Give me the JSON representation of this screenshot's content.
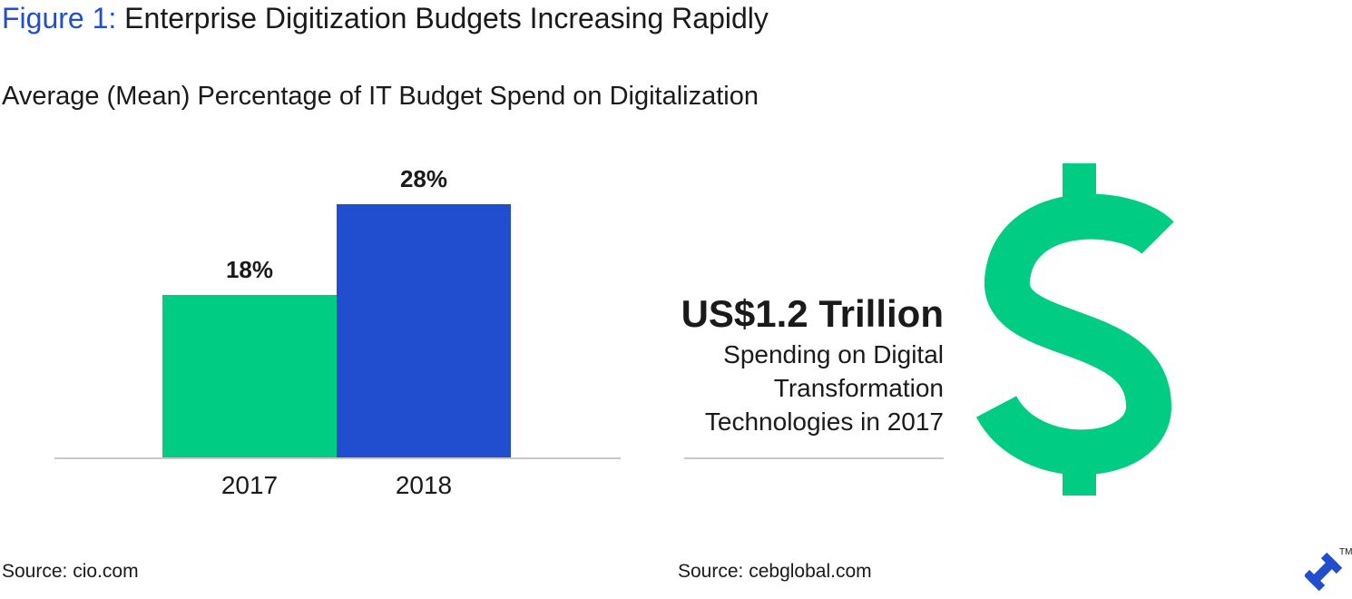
{
  "header": {
    "figure_label": "Figure 1:",
    "title": "Enterprise Digitization Budgets Increasing Rapidly",
    "subtitle": "Average (Mean) Percentage of IT Budget Spend on Digitalization"
  },
  "chart_data": {
    "type": "bar",
    "title": "Average (Mean) Percentage of IT Budget Spend on Digitalization",
    "categories": [
      "2017",
      "2018"
    ],
    "values": [
      18,
      28
    ],
    "value_labels": [
      "18%",
      "28%"
    ],
    "bar_colors": [
      "#00cc83",
      "#204ecf"
    ],
    "xlabel": "",
    "ylabel": "",
    "ylim": [
      0,
      30
    ],
    "grid": false,
    "legend": "none"
  },
  "stat": {
    "value": "US$1.2 Trillion",
    "description": "Spending on Digital Transformation Technologies in 2017",
    "icon": "dollar-icon",
    "icon_color": "#00cc83"
  },
  "sources": {
    "left": "Source: cio.com",
    "right": "Source: cebglobal.com"
  },
  "logo": {
    "icon": "toptal-logo",
    "trademark": "TM",
    "color": "#204ecf"
  },
  "colors": {
    "accent_blue": "#204ecf",
    "accent_green": "#00cc83",
    "text": "#1a1a1a",
    "axis": "#c8c8c8"
  }
}
